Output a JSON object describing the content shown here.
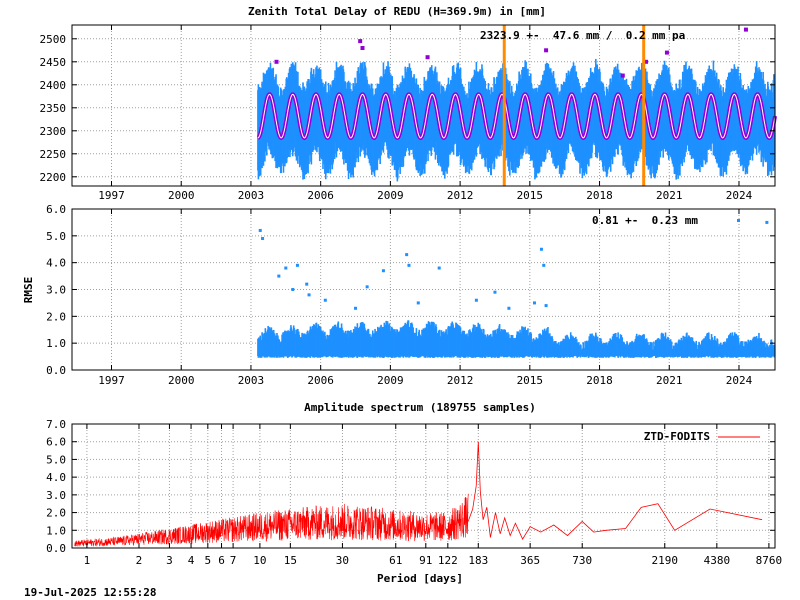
{
  "colors": {
    "observations": "#1e90ff",
    "fit_curve": "#9400d3",
    "outliers": "#9400d3",
    "breaks": "#ff8c00",
    "spectrum": "#ff0000",
    "grid": "#a0a0a0"
  },
  "footer": {
    "timestamp": "19-Jul-2025 12:55:28"
  },
  "chart_data": [
    {
      "type": "scatter",
      "title": "Zenith Total Delay of REDU (H=369.9m) in [mm]",
      "annotation": "2323.9 +-  47.6 mm /  0.2 mm pa",
      "xlabel": "",
      "ylabel": "",
      "xlim": [
        1995.3,
        2025.55
      ],
      "ylim": [
        2180,
        2530
      ],
      "x_ticks": [
        1997,
        2000,
        2003,
        2006,
        2009,
        2012,
        2015,
        2018,
        2021,
        2024
      ],
      "x_tick_labels": [
        "1997",
        "2000",
        "2003",
        "2006",
        "2009",
        "2012",
        "2015",
        "2018",
        "2021",
        "2024"
      ],
      "y_ticks": [
        2200,
        2250,
        2300,
        2350,
        2400,
        2450,
        2500
      ],
      "y_tick_labels": [
        "2200",
        "2250",
        "2300",
        "2350",
        "2400",
        "2450",
        "2500"
      ],
      "grid": true,
      "data_start": 2003.3,
      "data_end": 2025.55,
      "seasonal_fit": {
        "mean": 2323.9,
        "amplitude": 47.6,
        "rate_per_year": 0.2,
        "epoch": 2003.3,
        "range_low": 2270,
        "range_high": 2375
      },
      "observation_envelope": {
        "low": 2190,
        "high": 2480
      },
      "break_epochs": [
        2013.9,
        2019.9
      ],
      "outliers": [
        {
          "x": 2004.1,
          "y": 2450
        },
        {
          "x": 2007.7,
          "y": 2495
        },
        {
          "x": 2007.8,
          "y": 2480
        },
        {
          "x": 2010.6,
          "y": 2460
        },
        {
          "x": 2015.7,
          "y": 2475
        },
        {
          "x": 2019.0,
          "y": 2420
        },
        {
          "x": 2020.0,
          "y": 2450
        },
        {
          "x": 2020.9,
          "y": 2470
        },
        {
          "x": 2024.3,
          "y": 2520
        }
      ]
    },
    {
      "type": "scatter",
      "title": "",
      "annotation": "0.81 +-  0.23 mm",
      "xlabel": "",
      "ylabel": "RMSE",
      "xlim": [
        1995.3,
        2025.55
      ],
      "ylim": [
        0,
        6
      ],
      "x_ticks": [
        1997,
        2000,
        2003,
        2006,
        2009,
        2012,
        2015,
        2018,
        2021,
        2024
      ],
      "x_tick_labels": [
        "1997",
        "2000",
        "2003",
        "2006",
        "2009",
        "2012",
        "2015",
        "2018",
        "2021",
        "2024"
      ],
      "y_ticks": [
        0,
        1,
        2,
        3,
        4,
        5,
        6
      ],
      "y_tick_labels": [
        "0.0",
        "1.0",
        "2.0",
        "3.0",
        "4.0",
        "5.0",
        "6.0"
      ],
      "grid": true,
      "data_start": 2003.3,
      "data_end": 2025.55,
      "rmse_mean": 0.81,
      "rmse_std": 0.23,
      "outliers": [
        {
          "x": 2003.4,
          "y": 5.2
        },
        {
          "x": 2003.5,
          "y": 4.9
        },
        {
          "x": 2004.2,
          "y": 3.5
        },
        {
          "x": 2004.5,
          "y": 3.8
        },
        {
          "x": 2004.8,
          "y": 3.0
        },
        {
          "x": 2005.0,
          "y": 3.9
        },
        {
          "x": 2005.4,
          "y": 3.2
        },
        {
          "x": 2005.5,
          "y": 2.8
        },
        {
          "x": 2006.2,
          "y": 2.6
        },
        {
          "x": 2007.5,
          "y": 2.3
        },
        {
          "x": 2008.0,
          "y": 3.1
        },
        {
          "x": 2008.7,
          "y": 3.7
        },
        {
          "x": 2009.7,
          "y": 4.3
        },
        {
          "x": 2009.8,
          "y": 3.9
        },
        {
          "x": 2011.1,
          "y": 3.8
        },
        {
          "x": 2010.2,
          "y": 2.5
        },
        {
          "x": 2012.7,
          "y": 2.6
        },
        {
          "x": 2013.5,
          "y": 2.9
        },
        {
          "x": 2014.1,
          "y": 2.3
        },
        {
          "x": 2015.2,
          "y": 2.5
        },
        {
          "x": 2015.5,
          "y": 4.5
        },
        {
          "x": 2015.6,
          "y": 3.9
        },
        {
          "x": 2015.7,
          "y": 2.4
        },
        {
          "x": 2025.2,
          "y": 5.5
        }
      ]
    },
    {
      "type": "line",
      "title": "Amplitude spectrum (189755 samples)",
      "xlabel": "Period [days]",
      "ylabel": "",
      "x_scale": "log",
      "xlim": [
        0.82,
        9500
      ],
      "ylim": [
        0,
        7
      ],
      "x_ticks": [
        1,
        2,
        3,
        4,
        5,
        6,
        7,
        10,
        15,
        30,
        61,
        91,
        122,
        183,
        365,
        730,
        2190,
        4380,
        8760
      ],
      "x_tick_labels": [
        "1",
        "2",
        "3",
        "4",
        "5",
        "6",
        "7",
        "10",
        "15",
        "30",
        "61",
        "91",
        "122",
        "183",
        "365",
        "730",
        "2190",
        "4380",
        "8760"
      ],
      "y_ticks": [
        0,
        1,
        2,
        3,
        4,
        5,
        6,
        7
      ],
      "y_tick_labels": [
        "0.0",
        "1.0",
        "2.0",
        "3.0",
        "4.0",
        "5.0",
        "6.0",
        "7.0"
      ],
      "grid": true,
      "legend": {
        "position": "top-right",
        "entries": [
          "ZTD-FODITS"
        ]
      },
      "series": [
        {
          "name": "ZTD-FODITS",
          "x": [
            0.85,
            1,
            1.5,
            2,
            3,
            4,
            5,
            7,
            10,
            15,
            20,
            30,
            45,
            61,
            91,
            122,
            150,
            170,
            183,
            200,
            240,
            300,
            365,
            500,
            730,
            1000,
            1500,
            2000,
            2500,
            4000,
            8000
          ],
          "y": [
            0.3,
            0.35,
            0.45,
            0.6,
            0.8,
            0.95,
            1.1,
            1.25,
            1.45,
            1.6,
            1.7,
            1.8,
            1.7,
            1.55,
            1.45,
            1.45,
            2.0,
            2.4,
            6.0,
            1.8,
            1.1,
            1.1,
            0.9,
            1.3,
            1.5,
            1.0,
            2.4,
            2.6,
            1.0,
            2.2,
            1.6
          ]
        }
      ],
      "peak": {
        "x": 183,
        "y": 6.0
      }
    }
  ]
}
